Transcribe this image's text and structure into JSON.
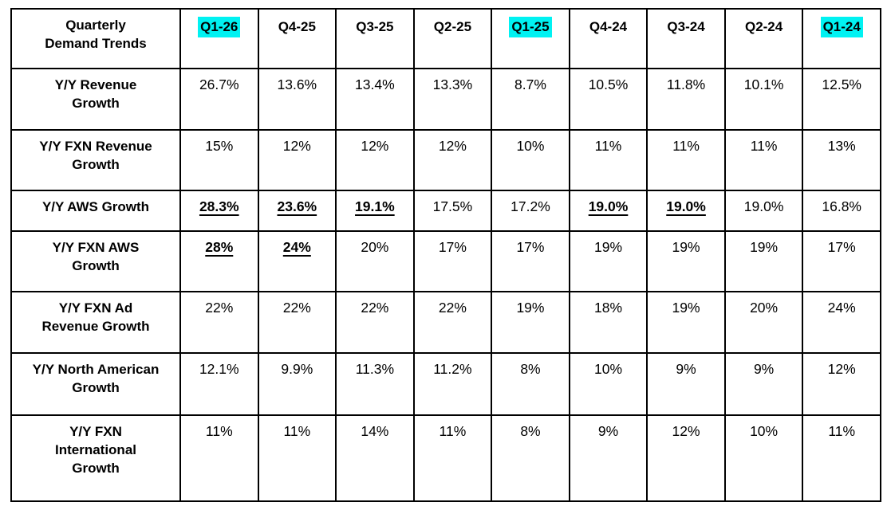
{
  "colors": {
    "highlight": "#00f2f2",
    "border": "#000000",
    "text": "#000000",
    "background": "#ffffff"
  },
  "table": {
    "corner_label": "Quarterly Demand Trends",
    "columns": [
      {
        "label": "Q1-26",
        "highlighted": true
      },
      {
        "label": "Q4-25",
        "highlighted": false
      },
      {
        "label": "Q3-25",
        "highlighted": false
      },
      {
        "label": "Q2-25",
        "highlighted": false
      },
      {
        "label": "Q1-25",
        "highlighted": true
      },
      {
        "label": "Q4-24",
        "highlighted": false
      },
      {
        "label": "Q3-24",
        "highlighted": false
      },
      {
        "label": "Q2-24",
        "highlighted": false
      },
      {
        "label": "Q1-24",
        "highlighted": true
      }
    ],
    "rows": [
      {
        "label": "Y/Y Revenue Growth",
        "values": [
          "26.7%",
          "13.6%",
          "13.4%",
          "13.3%",
          "8.7%",
          "10.5%",
          "11.8%",
          "10.1%",
          "12.5%"
        ],
        "emphasis": [
          false,
          false,
          false,
          false,
          false,
          false,
          false,
          false,
          false
        ]
      },
      {
        "label": "Y/Y FXN Revenue Growth",
        "values": [
          "15%",
          "12%",
          "12%",
          "12%",
          "10%",
          "11%",
          "11%",
          "11%",
          "13%"
        ],
        "emphasis": [
          false,
          false,
          false,
          false,
          false,
          false,
          false,
          false,
          false
        ]
      },
      {
        "label": "Y/Y AWS Growth",
        "values": [
          "28.3%",
          "23.6%",
          "19.1%",
          "17.5%",
          "17.2%",
          "19.0%",
          "19.0%",
          "19.0%",
          "16.8%"
        ],
        "emphasis": [
          true,
          true,
          true,
          false,
          false,
          true,
          true,
          false,
          false
        ]
      },
      {
        "label": "Y/Y FXN AWS Growth",
        "values": [
          "28%",
          "24%",
          "20%",
          "17%",
          "17%",
          "19%",
          "19%",
          "19%",
          "17%"
        ],
        "emphasis": [
          true,
          true,
          false,
          false,
          false,
          false,
          false,
          false,
          false
        ]
      },
      {
        "label": "Y/Y FXN Ad Revenue Growth",
        "values": [
          "22%",
          "22%",
          "22%",
          "22%",
          "19%",
          "18%",
          "19%",
          "20%",
          "24%"
        ],
        "emphasis": [
          false,
          false,
          false,
          false,
          false,
          false,
          false,
          false,
          false
        ]
      },
      {
        "label": "Y/Y North American Growth",
        "values": [
          "12.1%",
          "9.9%",
          "11.3%",
          "11.2%",
          "8%",
          "10%",
          "9%",
          "9%",
          "12%"
        ],
        "emphasis": [
          false,
          false,
          false,
          false,
          false,
          false,
          false,
          false,
          false
        ]
      },
      {
        "label": "Y/Y FXN International Growth",
        "values": [
          "11%",
          "11%",
          "14%",
          "11%",
          "8%",
          "9%",
          "12%",
          "10%",
          "11%"
        ],
        "emphasis": [
          false,
          false,
          false,
          false,
          false,
          false,
          false,
          false,
          false
        ]
      }
    ]
  }
}
